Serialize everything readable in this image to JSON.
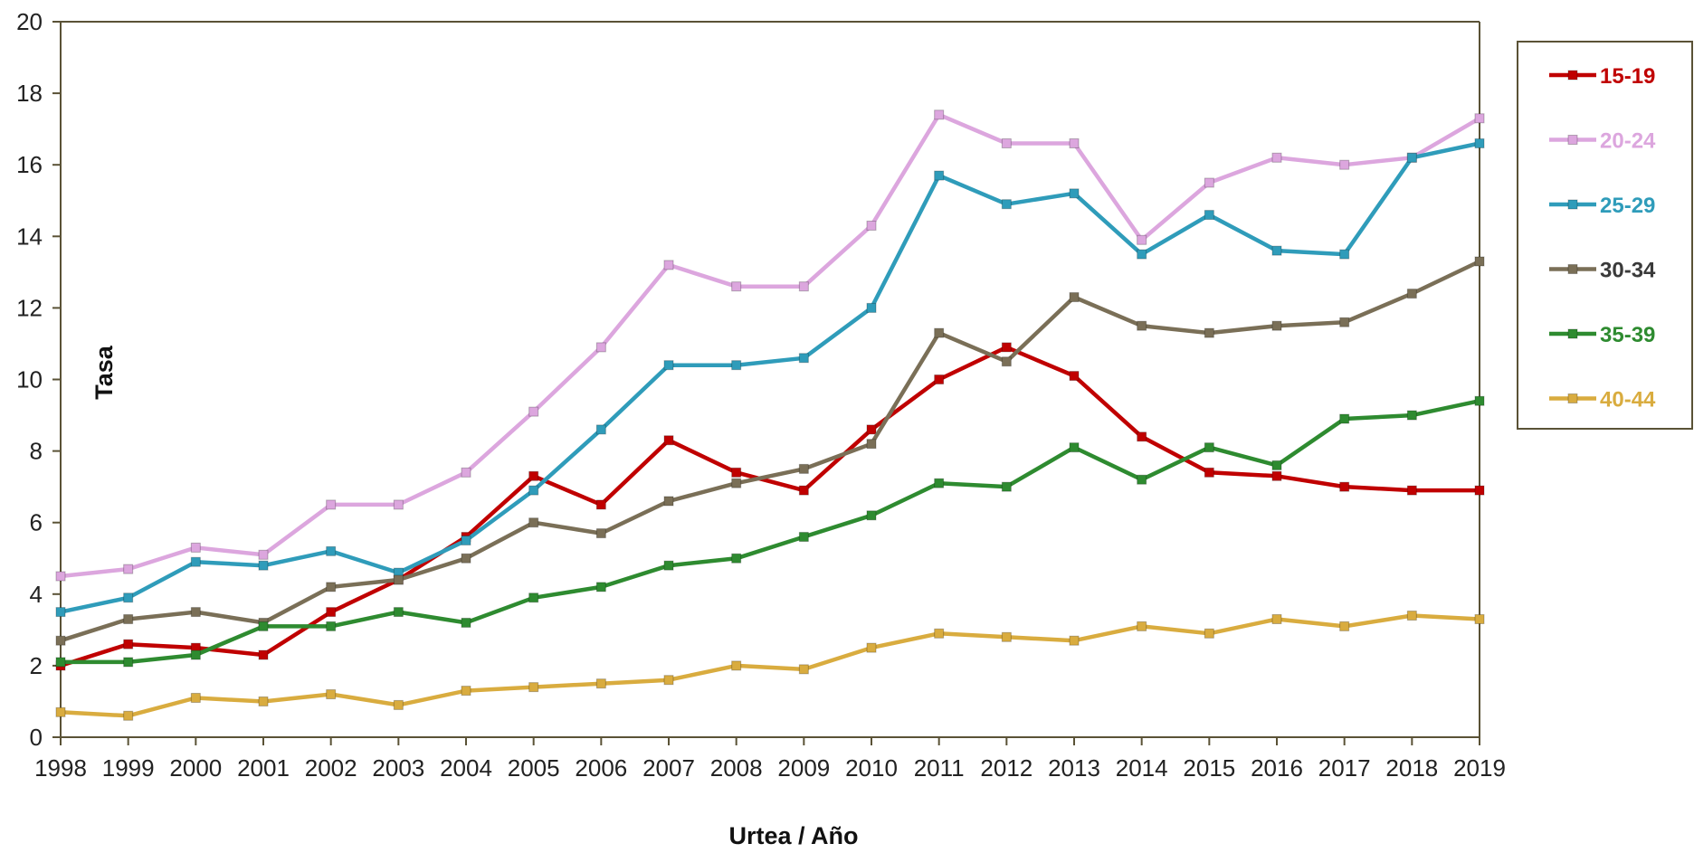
{
  "chart_data": {
    "type": "line",
    "title": "",
    "xlabel": "Urtea / Año",
    "ylabel": "Tasa",
    "ylim": [
      0,
      20
    ],
    "yticks": [
      0,
      2,
      4,
      6,
      8,
      10,
      12,
      14,
      16,
      18,
      20
    ],
    "categories": [
      "1998",
      "1999",
      "2000",
      "2001",
      "2002",
      "2003",
      "2004",
      "2005",
      "2006",
      "2007",
      "2008",
      "2009",
      "2010",
      "2011",
      "2012",
      "2013",
      "2014",
      "2015",
      "2016",
      "2017",
      "2018",
      "2019"
    ],
    "legend_position": "right",
    "grid": false,
    "series": [
      {
        "name": "15-19",
        "color": "#c00000",
        "values": [
          2.0,
          2.6,
          2.5,
          2.3,
          3.5,
          4.4,
          5.6,
          7.3,
          6.5,
          8.3,
          7.4,
          6.9,
          8.6,
          10.0,
          10.9,
          10.1,
          8.4,
          7.4,
          7.3,
          7.0,
          6.9,
          6.9
        ]
      },
      {
        "name": "20-24",
        "color": "#dca6de",
        "values": [
          4.5,
          4.7,
          5.3,
          5.1,
          6.5,
          6.5,
          7.4,
          9.1,
          10.9,
          13.2,
          12.6,
          12.6,
          14.3,
          17.4,
          16.6,
          16.6,
          13.9,
          15.5,
          16.2,
          16.0,
          16.2,
          17.3
        ]
      },
      {
        "name": "25-29",
        "color": "#2f9cba",
        "values": [
          3.5,
          3.9,
          4.9,
          4.8,
          5.2,
          4.6,
          5.5,
          6.9,
          8.6,
          10.4,
          10.4,
          10.6,
          12.0,
          15.7,
          14.9,
          15.2,
          13.5,
          14.6,
          13.6,
          13.5,
          16.2,
          16.6
        ]
      },
      {
        "name": "30-34",
        "color": "#7a6f57",
        "values": [
          2.7,
          3.3,
          3.5,
          3.2,
          4.2,
          4.4,
          5.0,
          6.0,
          5.7,
          6.6,
          7.1,
          7.5,
          8.2,
          11.3,
          10.5,
          12.3,
          11.5,
          11.3,
          11.5,
          11.6,
          12.4,
          13.3
        ]
      },
      {
        "name": "35-39",
        "color": "#2e8b30",
        "values": [
          2.1,
          2.1,
          2.3,
          3.1,
          3.1,
          3.5,
          3.2,
          3.9,
          4.2,
          4.8,
          5.0,
          5.6,
          6.2,
          7.1,
          7.0,
          8.1,
          7.2,
          8.1,
          7.6,
          8.9,
          9.0,
          9.4
        ]
      },
      {
        "name": "40-44",
        "color": "#d9ac3f",
        "values": [
          0.7,
          0.6,
          1.1,
          1.0,
          1.2,
          0.9,
          1.3,
          1.4,
          1.5,
          1.6,
          2.0,
          1.9,
          2.5,
          2.9,
          2.8,
          2.7,
          3.1,
          2.9,
          3.3,
          3.1,
          3.4,
          3.3
        ]
      }
    ]
  },
  "colors": {
    "axis": "#5a5236",
    "legend_border": "#5a5236",
    "legend_text_30_34": "#3a3a3a"
  }
}
